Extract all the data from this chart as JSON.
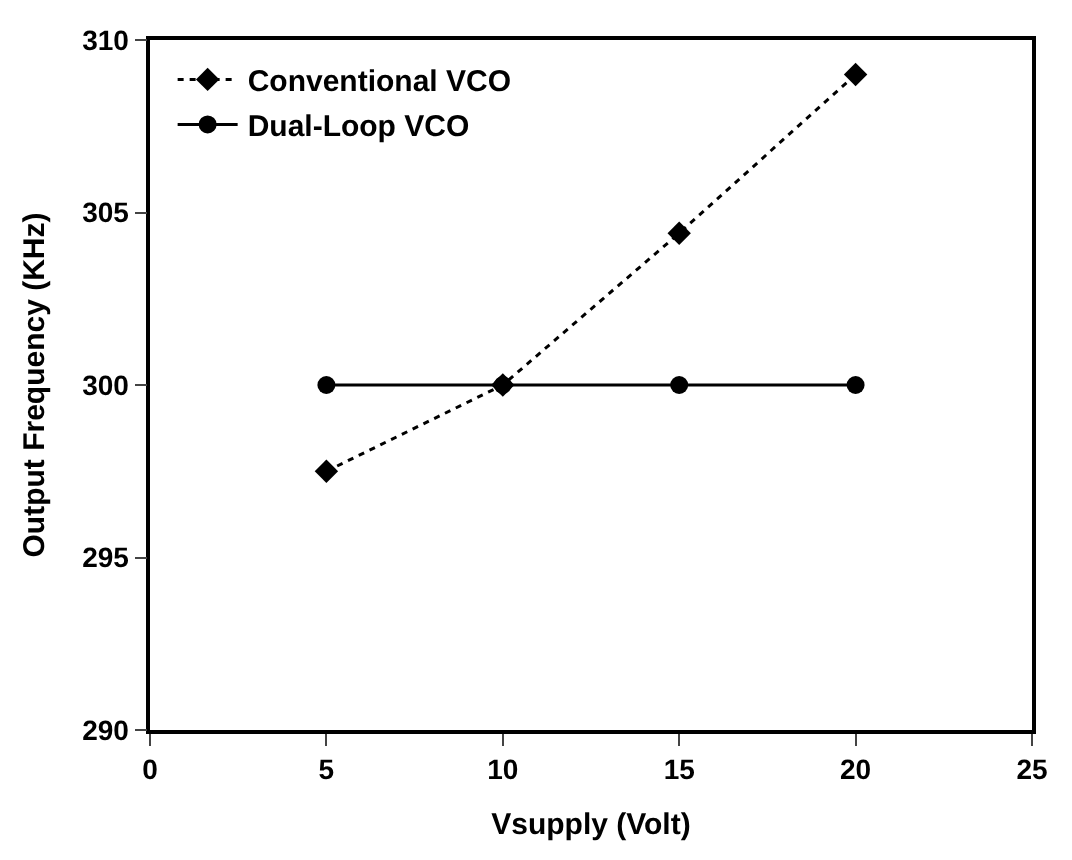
{
  "chart_data": {
    "type": "line",
    "xlabel": "Vsupply (Volt)",
    "ylabel": "Output Frequency (KHz)",
    "x": [
      5,
      10,
      15,
      20
    ],
    "series": [
      {
        "name": "Conventional VCO",
        "color": "#000000",
        "values": [
          297.5,
          300,
          304.4,
          309.0
        ],
        "marker": "diamond",
        "line_style": "dotted"
      },
      {
        "name": "Dual-Loop VCO",
        "color": "#000000",
        "values": [
          300,
          300,
          300,
          300
        ],
        "marker": "circle",
        "line_style": "solid"
      }
    ],
    "xlim": [
      0,
      25
    ],
    "xticks": [
      0,
      5,
      10,
      15,
      20,
      25
    ],
    "ylim": [
      290,
      310
    ],
    "yticks": [
      290,
      295,
      300,
      305,
      310
    ],
    "legend": "top left"
  }
}
